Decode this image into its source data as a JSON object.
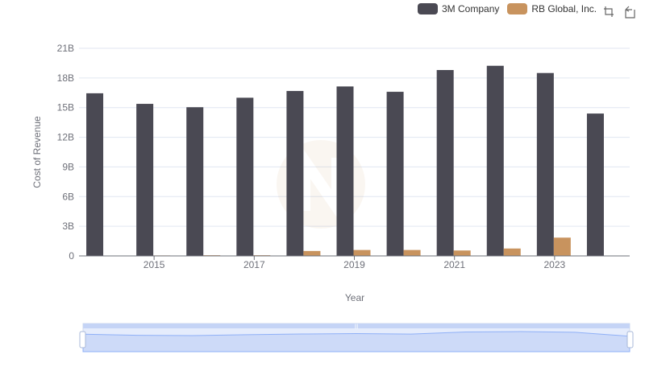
{
  "chart_data": {
    "type": "bar",
    "title": "",
    "xlabel": "Year",
    "ylabel": "Cost of Revenue",
    "categories": [
      "2014",
      "2015",
      "2016",
      "2017",
      "2018",
      "2019",
      "2020",
      "2021",
      "2022",
      "2023",
      "2024"
    ],
    "x_tick_labels": [
      "2015",
      "2017",
      "2019",
      "2021",
      "2023"
    ],
    "y_tick_labels": [
      "0",
      "3B",
      "6B",
      "9B",
      "12B",
      "15B",
      "18B",
      "21B"
    ],
    "ylim": [
      0,
      21
    ],
    "y_unit": "B",
    "grid": true,
    "legend_position": "top-right",
    "series": [
      {
        "name": "3M Company",
        "color": "#4a4953",
        "values": [
          16.45,
          15.38,
          15.04,
          16.0,
          16.68,
          17.14,
          16.6,
          18.8,
          19.23,
          18.5,
          14.4
        ]
      },
      {
        "name": "RB Global, Inc.",
        "color": "#c8935e",
        "values": [
          0.0,
          0.05,
          0.07,
          0.07,
          0.5,
          0.6,
          0.6,
          0.55,
          0.75,
          1.85,
          0.0
        ]
      }
    ]
  },
  "legend": {
    "items": [
      {
        "label": "3M Company",
        "color": "#4a4953"
      },
      {
        "label": "RB Global, Inc.",
        "color": "#c8935e"
      }
    ]
  },
  "toolbox": {
    "icons": [
      "zoom-icon",
      "restore-icon"
    ]
  },
  "datazoom": {
    "range_start": 0,
    "range_end": 100,
    "preview_values": [
      16.45,
      15.38,
      15.04,
      16.0,
      16.68,
      17.14,
      16.6,
      18.8,
      19.23,
      18.5,
      14.4
    ]
  },
  "colors": {
    "grid": "#e0e6f1",
    "axis": "#6e7079",
    "slider_fill": "#d4e0fa",
    "slider_line": "#8fb0f7"
  }
}
